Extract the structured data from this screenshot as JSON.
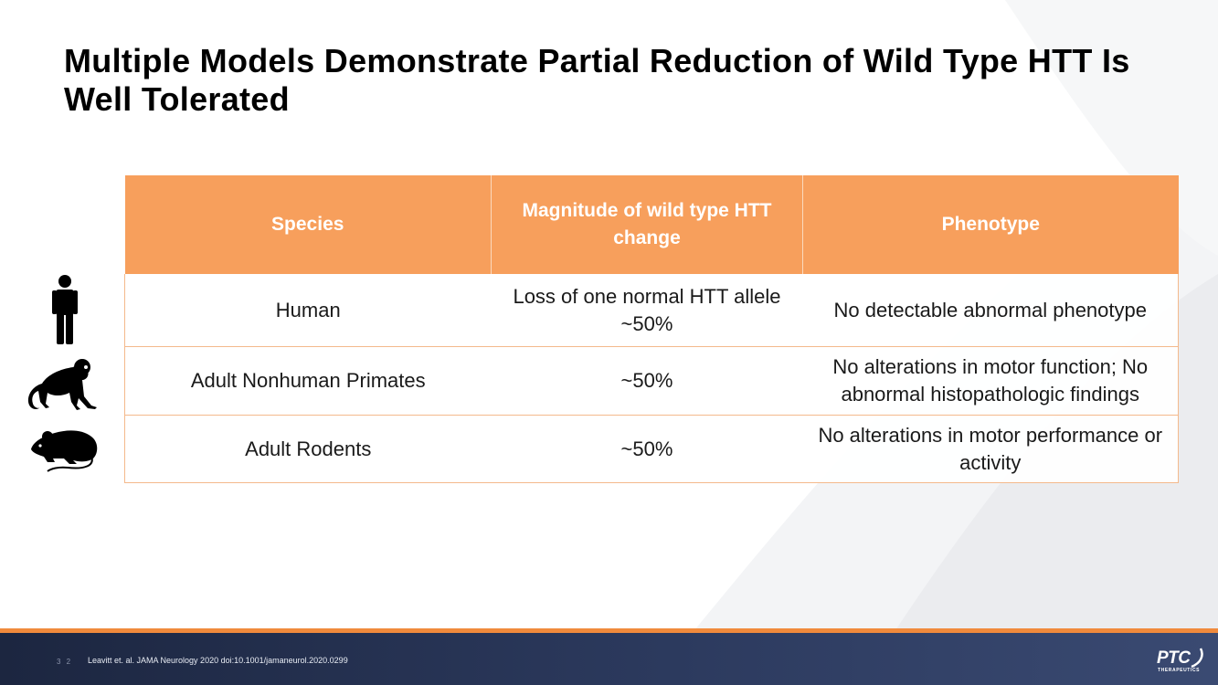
{
  "slide": {
    "title": "Multiple Models Demonstrate Partial Reduction of Wild Type HTT Is Well Tolerated",
    "page_number": "3 2",
    "citation": "Leavitt et. al. JAMA Neurology 2020 doi:10.1001/jamaneurol.2020.0299"
  },
  "table": {
    "headers": [
      "Species",
      "Magnitude of wild type HTT change",
      "Phenotype"
    ],
    "rows": [
      {
        "species": "Human",
        "magnitude": "Loss of one normal HTT allele ~50%",
        "phenotype": "No detectable abnormal phenotype",
        "icon": "human-icon"
      },
      {
        "species": "Adult Nonhuman Primates",
        "magnitude": "~50%",
        "phenotype": "No alterations in motor function; No abnormal histopathologic findings",
        "icon": "monkey-icon"
      },
      {
        "species": "Adult Rodents",
        "magnitude": "~50%",
        "phenotype": "No alterations in motor performance or activity",
        "icon": "rodent-icon"
      }
    ]
  },
  "logo": {
    "name": "PTC",
    "subtitle": "THERAPEUTICS"
  },
  "colors": {
    "header_fill": "#f79f5c",
    "accent_line": "#f08a3c",
    "footer_bg": "#2c3a5e"
  }
}
